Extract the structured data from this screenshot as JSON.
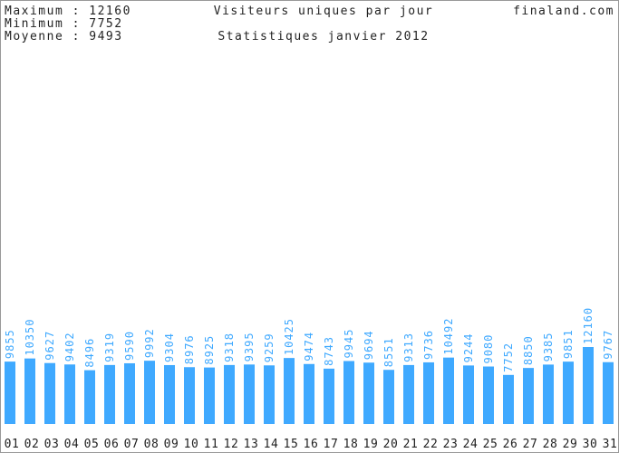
{
  "chart_data": {
    "type": "bar",
    "title": "Visiteurs uniques par jour",
    "subtitle": "Statistiques janvier 2012",
    "site": "finaland.com",
    "stats": [
      "Maximum : 12160",
      "Minimum : 7752",
      "Moyenne : 9493"
    ],
    "categories": [
      "01",
      "02",
      "03",
      "04",
      "05",
      "06",
      "07",
      "08",
      "09",
      "10",
      "11",
      "12",
      "13",
      "14",
      "15",
      "16",
      "17",
      "18",
      "19",
      "20",
      "21",
      "22",
      "23",
      "24",
      "25",
      "26",
      "27",
      "28",
      "29",
      "30",
      "31"
    ],
    "values": [
      9855,
      10350,
      9627,
      9402,
      8496,
      9319,
      9590,
      9992,
      9304,
      8976,
      8925,
      9318,
      9395,
      9259,
      10425,
      9474,
      8743,
      9945,
      9694,
      8551,
      9313,
      9736,
      10492,
      9244,
      9080,
      7752,
      8850,
      9385,
      9851,
      12160,
      9767
    ],
    "color": "#3fa9ff"
  }
}
